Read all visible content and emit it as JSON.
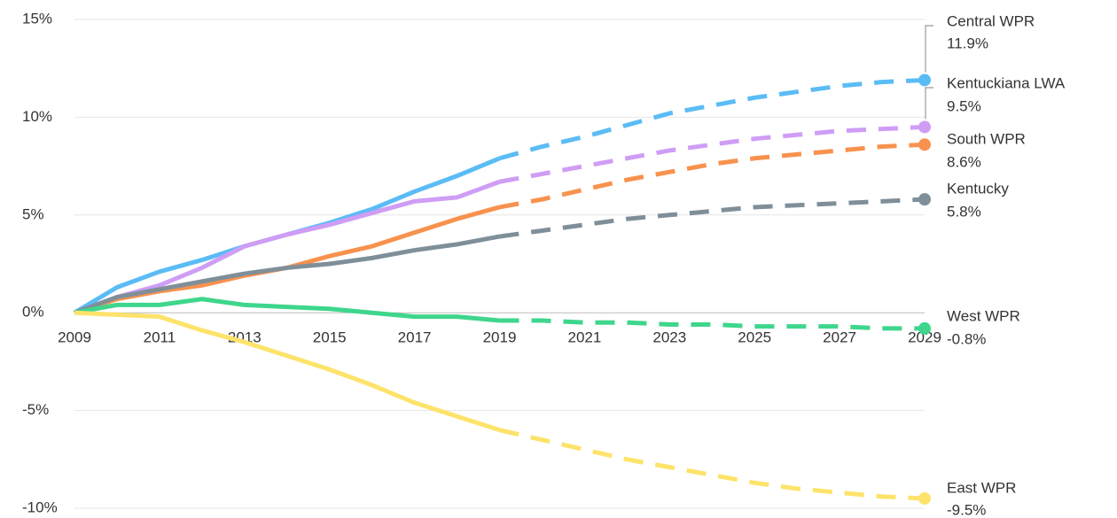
{
  "chart_data": {
    "type": "line",
    "x": [
      2009,
      2010,
      2011,
      2012,
      2013,
      2014,
      2015,
      2016,
      2017,
      2018,
      2019,
      2020,
      2021,
      2022,
      2023,
      2024,
      2025,
      2026,
      2027,
      2028,
      2029
    ],
    "forecast_from": 2019,
    "xlim": [
      2009,
      2029
    ],
    "xticks": [
      2009,
      2011,
      2013,
      2015,
      2017,
      2019,
      2021,
      2023,
      2025,
      2027,
      2029
    ],
    "ylim": [
      -10,
      15
    ],
    "yticks": [
      {
        "value": -10,
        "label": "-10%"
      },
      {
        "value": -5,
        "label": "-5%"
      },
      {
        "value": 0,
        "label": "0%"
      },
      {
        "value": 5,
        "label": "5%"
      },
      {
        "value": 10,
        "label": "10%"
      },
      {
        "value": 15,
        "label": "15%"
      }
    ],
    "grid": true,
    "series": [
      {
        "name": "Central WPR",
        "color": "#5bbcf5",
        "values": [
          0,
          1.3,
          2.1,
          2.7,
          3.4,
          4.0,
          4.6,
          5.3,
          6.2,
          7.0,
          7.9,
          8.5,
          9.0,
          9.6,
          10.2,
          10.6,
          11.0,
          11.3,
          11.6,
          11.8,
          11.9
        ],
        "value_labels": [
          null,
          null,
          null,
          null,
          null,
          null,
          null,
          null,
          null,
          null,
          null,
          null,
          null,
          null,
          null,
          null,
          null,
          null,
          null,
          null,
          "11.9%"
        ]
      },
      {
        "name": "Kentuckiana LWA",
        "color": "#cf9df5",
        "values": [
          0,
          0.8,
          1.4,
          2.3,
          3.4,
          4.0,
          4.5,
          5.1,
          5.7,
          5.9,
          6.7,
          7.1,
          7.5,
          7.9,
          8.3,
          8.6,
          8.9,
          9.1,
          9.3,
          9.4,
          9.5
        ],
        "value_labels": [
          null,
          null,
          null,
          null,
          null,
          null,
          null,
          null,
          null,
          null,
          null,
          null,
          null,
          null,
          null,
          null,
          null,
          null,
          null,
          null,
          "9.5%"
        ]
      },
      {
        "name": "South WPR",
        "color": "#f7924e",
        "values": [
          0,
          0.7,
          1.1,
          1.4,
          1.9,
          2.3,
          2.9,
          3.4,
          4.1,
          4.8,
          5.4,
          5.8,
          6.3,
          6.8,
          7.2,
          7.6,
          7.9,
          8.1,
          8.3,
          8.5,
          8.6
        ],
        "value_labels": [
          null,
          null,
          null,
          null,
          null,
          null,
          null,
          null,
          null,
          null,
          null,
          null,
          null,
          null,
          null,
          null,
          null,
          null,
          null,
          null,
          "8.6%"
        ]
      },
      {
        "name": "Kentucky",
        "color": "#7f8f99",
        "values": [
          0,
          0.8,
          1.2,
          1.6,
          2.0,
          2.3,
          2.5,
          2.8,
          3.2,
          3.5,
          3.9,
          4.2,
          4.5,
          4.8,
          5.0,
          5.2,
          5.4,
          5.5,
          5.6,
          5.7,
          5.8
        ],
        "value_labels": [
          null,
          null,
          null,
          null,
          null,
          null,
          null,
          null,
          null,
          null,
          null,
          null,
          null,
          null,
          null,
          null,
          null,
          null,
          null,
          null,
          "5.8%"
        ]
      },
      {
        "name": "West WPR",
        "color": "#3ed68c",
        "values": [
          0,
          0.4,
          0.4,
          0.7,
          0.4,
          0.3,
          0.2,
          0.0,
          -0.2,
          -0.2,
          -0.4,
          -0.4,
          -0.5,
          -0.5,
          -0.6,
          -0.6,
          -0.7,
          -0.7,
          -0.7,
          -0.8,
          -0.8
        ],
        "value_labels": [
          null,
          null,
          null,
          null,
          null,
          null,
          null,
          null,
          null,
          null,
          null,
          null,
          null,
          null,
          null,
          null,
          null,
          null,
          null,
          null,
          "-0.8%"
        ]
      },
      {
        "name": "East WPR",
        "color": "#fde36a",
        "values": [
          0,
          -0.1,
          -0.2,
          -0.9,
          -1.5,
          -2.2,
          -2.9,
          -3.7,
          -4.6,
          -5.3,
          -6.0,
          -6.5,
          -7.0,
          -7.5,
          -7.9,
          -8.3,
          -8.7,
          -9.0,
          -9.2,
          -9.4,
          -9.5
        ],
        "value_labels": [
          null,
          null,
          null,
          null,
          null,
          null,
          null,
          null,
          null,
          null,
          null,
          null,
          null,
          null,
          null,
          null,
          null,
          null,
          null,
          null,
          "-9.5%"
        ]
      }
    ]
  }
}
